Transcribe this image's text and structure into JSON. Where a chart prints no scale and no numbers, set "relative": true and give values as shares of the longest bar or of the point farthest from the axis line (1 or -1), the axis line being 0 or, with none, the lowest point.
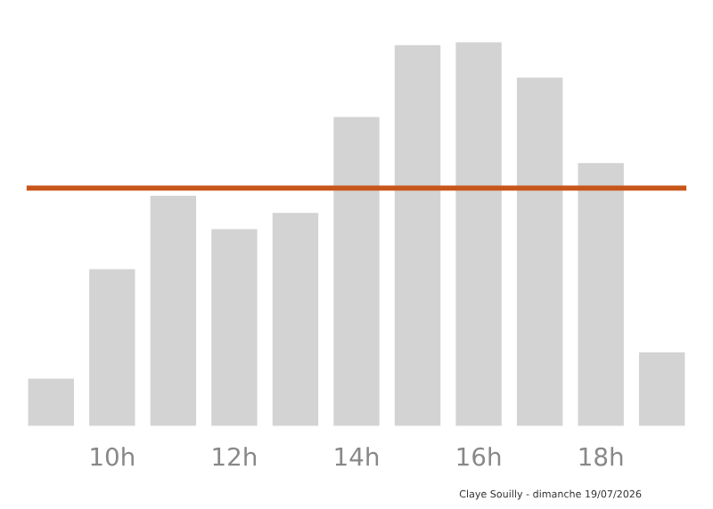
{
  "chart_data": {
    "type": "bar",
    "relative": true,
    "categories": [
      null,
      "10h",
      null,
      "12h",
      null,
      "14h",
      null,
      "16h",
      null,
      "18h",
      null
    ],
    "values": [
      0.129,
      0.412,
      0.602,
      0.516,
      0.558,
      0.806,
      0.992,
      1,
      0.908,
      0.687,
      0.197
    ],
    "color": "#d3d3d3",
    "ref_lines": [
      {
        "axis": "y",
        "value": 0.619,
        "color": "#c8561a",
        "line_style": "solid"
      }
    ],
    "annotations": [
      "Claye Souilly - dimanche 19/07/2026"
    ],
    "grid": false,
    "legend": false
  }
}
